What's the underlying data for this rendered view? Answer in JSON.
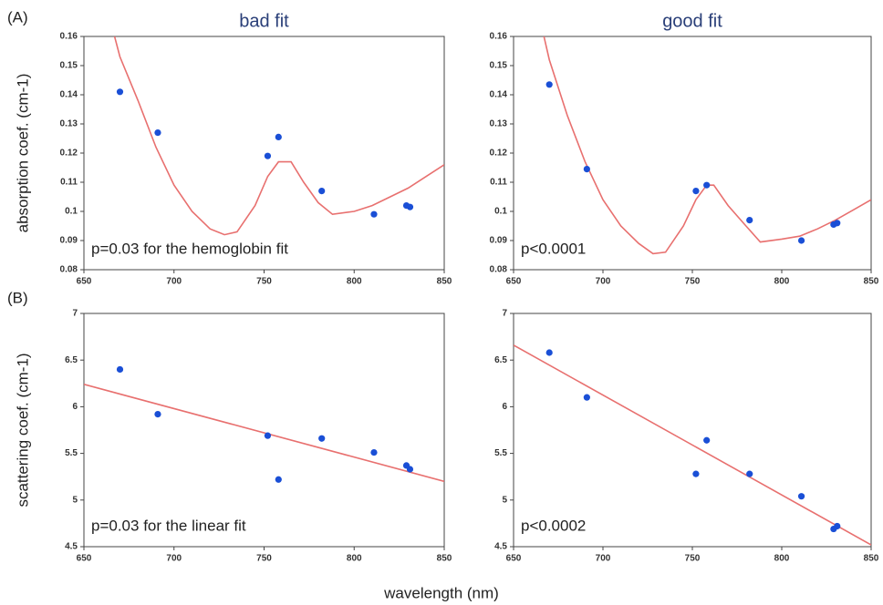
{
  "figure": {
    "panel_labels": [
      "(A)",
      "(B)"
    ],
    "x_label": "wavelength (nm)"
  },
  "chart_data": [
    {
      "type": "scatter",
      "title": "bad fit",
      "ylabel": "absorption coef. (cm-1)",
      "annotation": "p=0.03 for the hemoglobin fit",
      "xlim": [
        650,
        850
      ],
      "xticks": [
        650,
        700,
        750,
        800,
        850
      ],
      "ylim": [
        0.08,
        0.16
      ],
      "yticks": [
        0.08,
        0.09,
        0.1,
        0.11,
        0.12,
        0.13,
        0.14,
        0.15,
        0.16
      ],
      "points": {
        "color": "#1a4fd6",
        "x": [
          670,
          691,
          752,
          758,
          782,
          811,
          829,
          831
        ],
        "y": [
          0.141,
          0.127,
          0.119,
          0.1255,
          0.107,
          0.099,
          0.102,
          0.1015
        ]
      },
      "fit": {
        "color": "#e8706f",
        "x": [
          667,
          670,
          680,
          690,
          700,
          710,
          720,
          728,
          735,
          745,
          752,
          758,
          765,
          772,
          780,
          788,
          800,
          810,
          820,
          830,
          840,
          850
        ],
        "y": [
          0.16,
          0.153,
          0.138,
          0.122,
          0.109,
          0.1,
          0.094,
          0.092,
          0.093,
          0.102,
          0.112,
          0.117,
          0.117,
          0.11,
          0.103,
          0.099,
          0.1,
          0.102,
          0.105,
          0.108,
          0.112,
          0.116
        ]
      }
    },
    {
      "type": "scatter",
      "title": "good fit",
      "annotation": "p<0.0001",
      "xlim": [
        650,
        850
      ],
      "xticks": [
        650,
        700,
        750,
        800,
        850
      ],
      "ylim": [
        0.08,
        0.16
      ],
      "yticks": [
        0.08,
        0.09,
        0.1,
        0.11,
        0.12,
        0.13,
        0.14,
        0.15,
        0.16
      ],
      "points": {
        "color": "#1a4fd6",
        "x": [
          670,
          691,
          752,
          758,
          782,
          811,
          829,
          831
        ],
        "y": [
          0.1435,
          0.1145,
          0.107,
          0.109,
          0.097,
          0.09,
          0.0955,
          0.096
        ]
      },
      "fit": {
        "color": "#e8706f",
        "x": [
          667,
          670,
          680,
          690,
          700,
          710,
          720,
          728,
          735,
          745,
          752,
          758,
          762,
          770,
          780,
          788,
          800,
          810,
          820,
          830,
          840,
          850
        ],
        "y": [
          0.16,
          0.152,
          0.133,
          0.117,
          0.104,
          0.095,
          0.089,
          0.0855,
          0.086,
          0.095,
          0.104,
          0.109,
          0.109,
          0.102,
          0.095,
          0.0895,
          0.0905,
          0.0915,
          0.094,
          0.097,
          0.1005,
          0.104
        ]
      }
    },
    {
      "type": "scatter",
      "ylabel": "scattering coef. (cm-1)",
      "annotation": "p=0.03 for the linear fit",
      "xlim": [
        650,
        850
      ],
      "xticks": [
        650,
        700,
        750,
        800,
        850
      ],
      "ylim": [
        4.5,
        7
      ],
      "yticks": [
        4.5,
        5,
        5.5,
        6,
        6.5,
        7
      ],
      "points": {
        "color": "#1a4fd6",
        "x": [
          670,
          691,
          752,
          758,
          782,
          811,
          829,
          831
        ],
        "y": [
          6.4,
          5.92,
          5.69,
          5.22,
          5.66,
          5.51,
          5.37,
          5.33
        ]
      },
      "fit": {
        "color": "#e8706f",
        "x": [
          650,
          850
        ],
        "y": [
          6.24,
          5.2
        ]
      }
    },
    {
      "type": "scatter",
      "annotation": "p<0.0002",
      "xlim": [
        650,
        850
      ],
      "xticks": [
        650,
        700,
        750,
        800,
        850
      ],
      "ylim": [
        4.5,
        7
      ],
      "yticks": [
        4.5,
        5,
        5.5,
        6,
        6.5,
        7
      ],
      "points": {
        "color": "#1a4fd6",
        "x": [
          670,
          691,
          752,
          758,
          782,
          811,
          829,
          831
        ],
        "y": [
          6.58,
          6.1,
          5.28,
          5.64,
          5.28,
          5.04,
          4.69,
          4.72
        ]
      },
      "fit": {
        "color": "#e8706f",
        "x": [
          650,
          850
        ],
        "y": [
          6.66,
          4.52
        ]
      }
    }
  ]
}
